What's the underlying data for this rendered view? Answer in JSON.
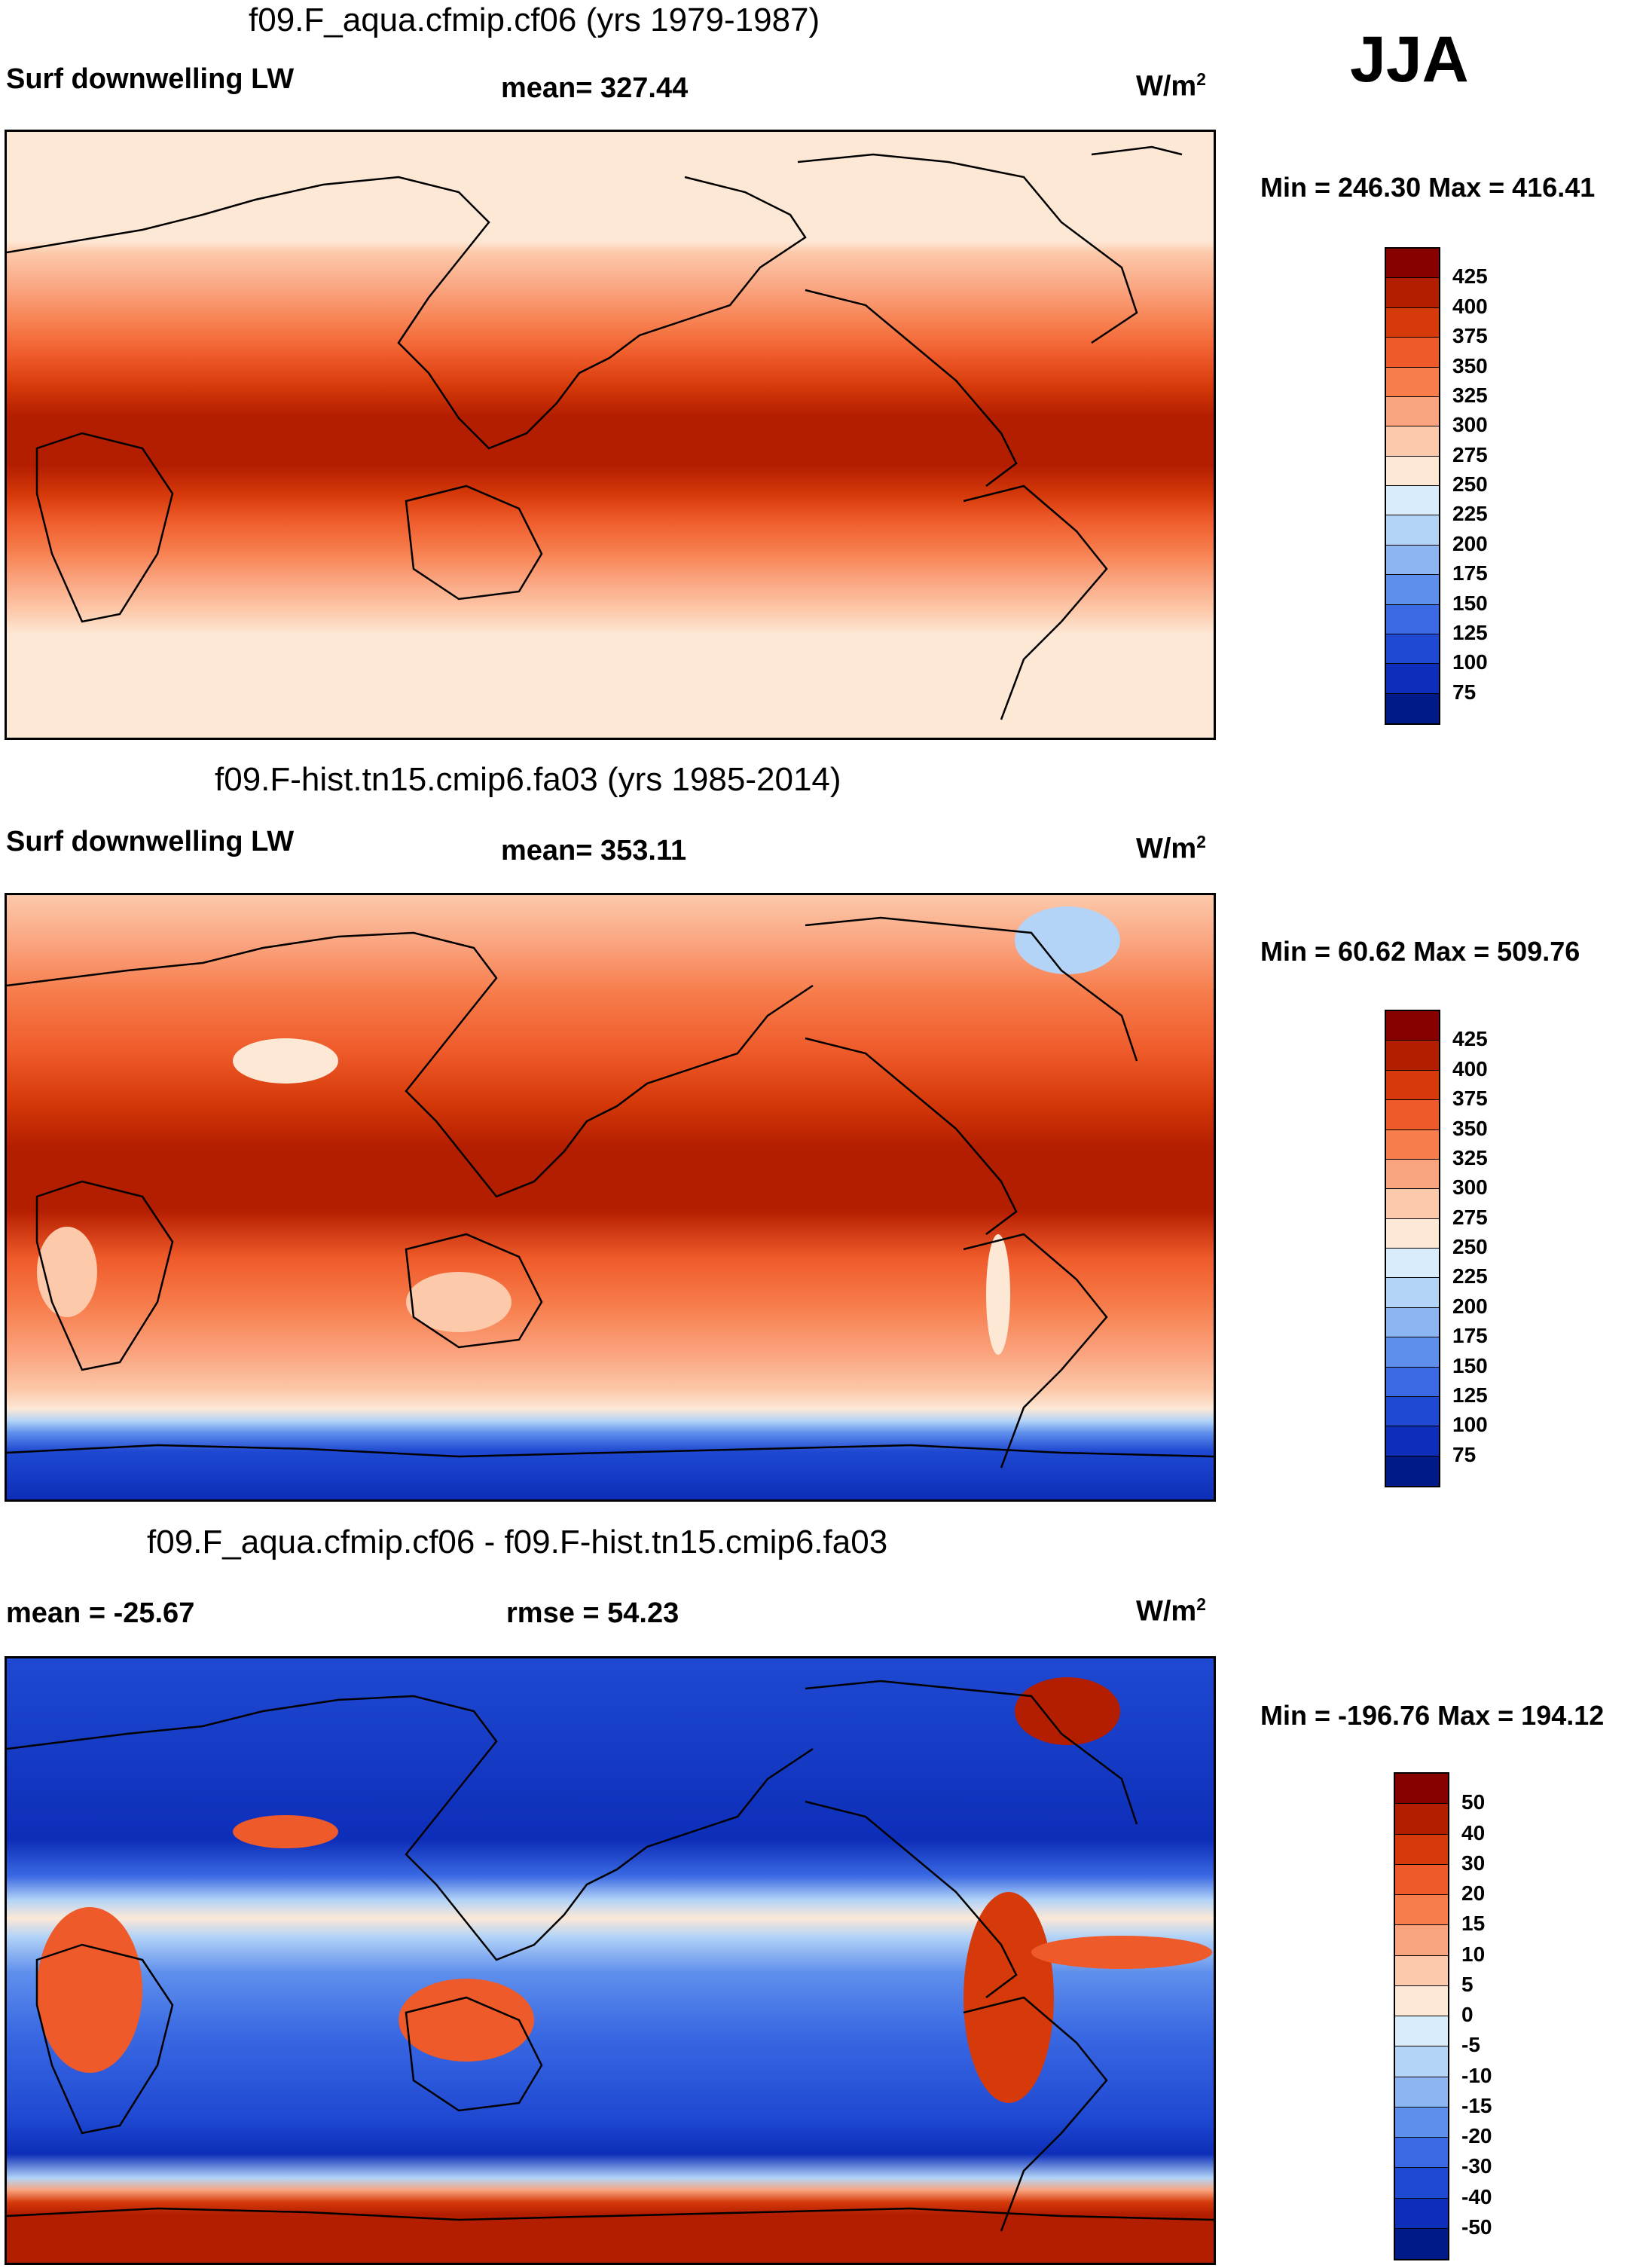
{
  "season": "JJA",
  "unit_main": "W/m",
  "unit_sup": "2",
  "panels": [
    {
      "title": "f09.F_aqua.cfmip.cf06 (yrs 1979-1987)",
      "left_label": "Surf downwelling LW",
      "center_label": "mean= 327.44",
      "minmax": "Min = 246.30 Max = 416.41"
    },
    {
      "title": "f09.F-hist.tn15.cmip6.fa03 (yrs 1985-2014)",
      "left_label": "Surf downwelling LW",
      "center_label": "mean= 353.11",
      "minmax": "Min =  60.62 Max = 509.76"
    },
    {
      "title": "f09.F_aqua.cfmip.cf06 - f09.F-hist.tn15.cmip6.fa03",
      "left_label": "mean = -25.67",
      "center_label": "rmse =  54.23",
      "minmax": "Min = -196.76 Max = 194.12"
    }
  ],
  "colorbar_main": {
    "labels": [
      "425",
      "400",
      "375",
      "350",
      "325",
      "300",
      "275",
      "250",
      "225",
      "200",
      "175",
      "150",
      "125",
      "100",
      "75"
    ],
    "colors": [
      "#870000",
      "#b31d00",
      "#d63a0a",
      "#ef5a2a",
      "#f77d4c",
      "#faa47f",
      "#fcc9aa",
      "#fde8d6",
      "#d9ecfb",
      "#b3d4f7",
      "#8cb5f2",
      "#5f8fec",
      "#3a69e3",
      "#1f49d2",
      "#0d2eb8",
      "#001a88"
    ]
  },
  "colorbar_diff": {
    "labels": [
      "50",
      "40",
      "30",
      "20",
      "15",
      "10",
      "5",
      "0",
      "-5",
      "-10",
      "-15",
      "-20",
      "-30",
      "-40",
      "-50"
    ],
    "colors": [
      "#870000",
      "#b31d00",
      "#d63a0a",
      "#ef5a2a",
      "#f77d4c",
      "#faa47f",
      "#fcc9aa",
      "#fde8d6",
      "#d9ecfb",
      "#b3d4f7",
      "#8cb5f2",
      "#5f8fec",
      "#3a69e3",
      "#1f49d2",
      "#0d2eb8",
      "#001a88"
    ]
  }
}
